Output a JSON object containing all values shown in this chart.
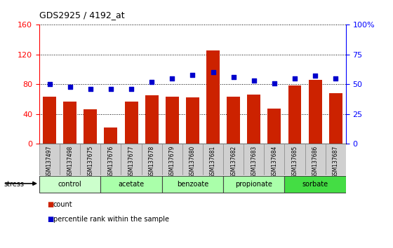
{
  "title": "GDS2925 / 4192_at",
  "samples": [
    "GSM137497",
    "GSM137498",
    "GSM137675",
    "GSM137676",
    "GSM137677",
    "GSM137678",
    "GSM137679",
    "GSM137680",
    "GSM137681",
    "GSM137682",
    "GSM137683",
    "GSM137684",
    "GSM137685",
    "GSM137686",
    "GSM137687"
  ],
  "counts": [
    63,
    57,
    46,
    22,
    57,
    65,
    63,
    62,
    126,
    63,
    66,
    47,
    78,
    86,
    68
  ],
  "percentiles": [
    50,
    48,
    46,
    46,
    46,
    52,
    55,
    58,
    60,
    56,
    53,
    51,
    55,
    57,
    55
  ],
  "ylim_left": [
    0,
    160
  ],
  "ylim_right": [
    0,
    100
  ],
  "yticks_left": [
    0,
    40,
    80,
    120,
    160
  ],
  "yticks_right": [
    0,
    25,
    50,
    75,
    100
  ],
  "ytick_labels_right": [
    "0",
    "25",
    "50",
    "75",
    "100%"
  ],
  "bar_color": "#cc2200",
  "dot_color": "#0000cc",
  "groups_data": [
    {
      "label": "control",
      "start": 0,
      "end": 2,
      "color": "#ccffcc"
    },
    {
      "label": "acetate",
      "start": 3,
      "end": 5,
      "color": "#aaffaa"
    },
    {
      "label": "benzoate",
      "start": 6,
      "end": 8,
      "color": "#aaffaa"
    },
    {
      "label": "propionate",
      "start": 9,
      "end": 11,
      "color": "#aaffaa"
    },
    {
      "label": "sorbate",
      "start": 12,
      "end": 14,
      "color": "#44dd44"
    }
  ],
  "stress_label": "stress",
  "legend_count_label": "count",
  "legend_pct_label": "percentile rank within the sample",
  "sample_box_color": "#d0d0d0",
  "plot_bg": "#ffffff"
}
